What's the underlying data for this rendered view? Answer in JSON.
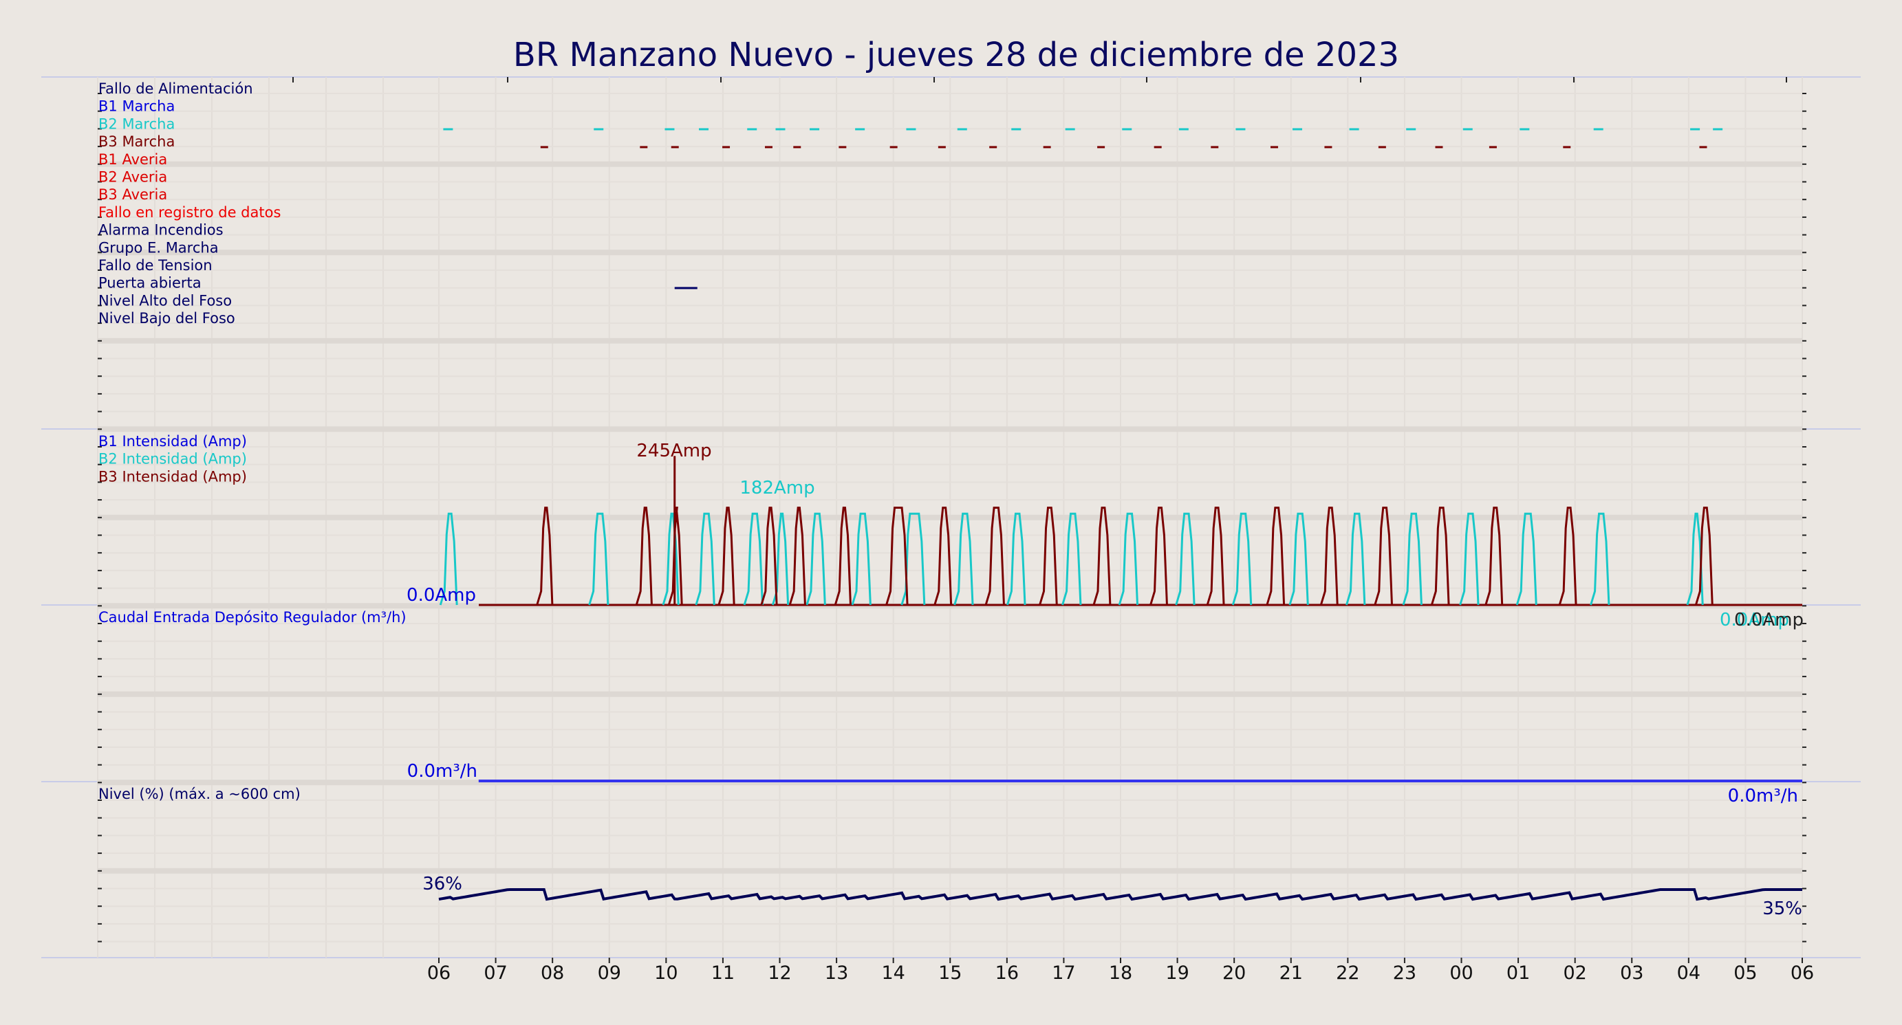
{
  "chart_data": {
    "type": "line",
    "title": "BR Manzano Nuevo   -   jueves 28 de diciembre de 2023",
    "x_ticks": [
      "06",
      "07",
      "08",
      "09",
      "10",
      "11",
      "12",
      "13",
      "14",
      "15",
      "16",
      "17",
      "18",
      "19",
      "20",
      "21",
      "22",
      "23",
      "00",
      "01",
      "02",
      "03",
      "04",
      "05",
      "06"
    ],
    "x_range_hours": [
      0,
      24
    ],
    "digital_signals": {
      "labels": [
        {
          "text": "Fallo de Alimentación",
          "color": "#000066"
        },
        {
          "text": "B1 Marcha",
          "color": "#0000dd"
        },
        {
          "text": "B2 Marcha",
          "color": "#18c8c8"
        },
        {
          "text": "B3 Marcha",
          "color": "#7a0000"
        },
        {
          "text": "B1 Averia",
          "color": "#dd0000"
        },
        {
          "text": "B2 Averia",
          "color": "#dd0000"
        },
        {
          "text": "B3 Averia",
          "color": "#dd0000"
        },
        {
          "text": "Fallo en registro de datos",
          "color": "#ee0000"
        },
        {
          "text": "Alarma Incendios",
          "color": "#000066"
        },
        {
          "text": "Grupo E. Marcha",
          "color": "#000066"
        },
        {
          "text": "Fallo de Tension",
          "color": "#000066"
        },
        {
          "text": "Puerta abierta",
          "color": "#000066"
        },
        {
          "text": "Nivel Alto del Foso",
          "color": "#000066"
        },
        {
          "text": "Nivel Bajo del Foso",
          "color": "#000066"
        }
      ],
      "b2_marcha_times_h": [
        0.15,
        2.8,
        4.05,
        4.65,
        5.5,
        6.0,
        6.6,
        7.4,
        8.3,
        9.2,
        10.15,
        11.1,
        12.1,
        13.1,
        14.1,
        15.1,
        16.1,
        17.1,
        18.1,
        19.1,
        20.4,
        22.1,
        22.5
      ],
      "b3_marcha_times_h": [
        1.85,
        3.6,
        4.15,
        5.05,
        5.8,
        6.3,
        7.1,
        8.0,
        8.85,
        9.75,
        10.7,
        11.65,
        12.65,
        13.65,
        14.7,
        15.65,
        16.6,
        17.6,
        18.55,
        19.85,
        22.25
      ],
      "puerta_abierta_h": [
        4.15,
        4.55
      ],
      "colors": {
        "b2": "#18c8c8",
        "b3": "#7a0000",
        "puerta": "#000066"
      }
    },
    "intensity": {
      "legend": [
        {
          "text": "B1 Intensidad (Amp)",
          "color": "#0000dd"
        },
        {
          "text": "B2 Intensidad (Amp)",
          "color": "#18c8c8"
        },
        {
          "text": "B3 Intensidad (Amp)",
          "color": "#7a0000"
        }
      ],
      "series": [
        {
          "name": "B1 Intensidad (Amp)",
          "color": "#0000dd",
          "pulses": []
        },
        {
          "name": "B2 Intensidad (Amp)",
          "color": "#18c8c8",
          "pulses": [
            [
              0.1,
              0.22
            ],
            [
              2.72,
              2.88
            ],
            [
              4.02,
              4.12
            ],
            [
              4.6,
              4.75
            ],
            [
              5.45,
              5.6
            ],
            [
              5.95,
              6.05
            ],
            [
              6.55,
              6.7
            ],
            [
              7.35,
              7.5
            ],
            [
              8.22,
              8.45
            ],
            [
              9.15,
              9.3
            ],
            [
              10.08,
              10.22
            ],
            [
              11.05,
              11.2
            ],
            [
              12.05,
              12.2
            ],
            [
              13.05,
              13.2
            ],
            [
              14.05,
              14.2
            ],
            [
              15.05,
              15.2
            ],
            [
              16.05,
              16.2
            ],
            [
              17.05,
              17.2
            ],
            [
              18.05,
              18.2
            ],
            [
              19.05,
              19.22
            ],
            [
              20.35,
              20.5
            ],
            [
              22.05,
              22.15
            ]
          ],
          "peak": 182,
          "plateau": 150
        },
        {
          "name": "B3 Intensidad (Amp)",
          "color": "#7a0000",
          "pulses": [
            [
              1.8,
              1.9
            ],
            [
              3.55,
              3.65
            ],
            [
              4.12,
              4.18
            ],
            [
              5.0,
              5.1
            ],
            [
              5.75,
              5.85
            ],
            [
              6.25,
              6.35
            ],
            [
              7.05,
              7.15
            ],
            [
              7.95,
              8.15
            ],
            [
              8.8,
              8.92
            ],
            [
              9.7,
              9.85
            ],
            [
              10.65,
              10.78
            ],
            [
              11.6,
              11.72
            ],
            [
              12.6,
              12.72
            ],
            [
              13.6,
              13.72
            ],
            [
              14.65,
              14.78
            ],
            [
              15.6,
              15.72
            ],
            [
              16.55,
              16.68
            ],
            [
              17.55,
              17.68
            ],
            [
              18.5,
              18.62
            ],
            [
              19.8,
              19.92
            ],
            [
              22.2,
              22.32
            ]
          ],
          "peak": 245,
          "plateau": 160
        }
      ],
      "annotations": {
        "max_b3": "245Amp",
        "max_b2": "182Amp",
        "start": "0.0Amp",
        "end": "0.0Amp",
        "end_b2": "0.0Amp"
      },
      "ylim": [
        0,
        260
      ]
    },
    "flow": {
      "label": "Caudal Entrada Depósito Regulador (m³/h)",
      "color": "#3333ee",
      "x": [
        0.7,
        24
      ],
      "y": [
        0,
        0
      ],
      "start_label": "0.0m³/h",
      "end_label": "0.0m³/h"
    },
    "level": {
      "label": "Nivel (%) (máx. a ~600 cm)",
      "color": "#000055",
      "start_label": "36%",
      "end_label": "35%",
      "ylim": [
        0,
        100
      ]
    }
  }
}
